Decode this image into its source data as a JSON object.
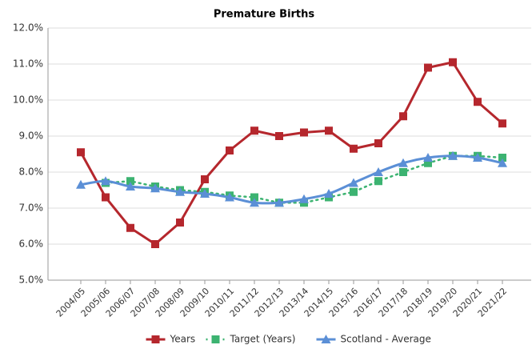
{
  "chart_data": {
    "type": "line",
    "title": "Premature Births",
    "categories": [
      "2004/05",
      "2005/06",
      "2006/07",
      "2007/08",
      "2008/09",
      "2009/10",
      "2010/11",
      "2011/12",
      "2012/13",
      "2013/14",
      "2014/15",
      "2015/16",
      "2016/17",
      "2017/18",
      "2018/19",
      "2019/20",
      "2020/21",
      "2021/22"
    ],
    "series": [
      {
        "name": "Years",
        "color": "#b5272d",
        "values": [
          8.55,
          7.3,
          6.45,
          6.0,
          6.6,
          7.8,
          8.6,
          9.15,
          9.0,
          9.1,
          9.15,
          8.65,
          8.8,
          9.55,
          10.9,
          11.05,
          9.95,
          9.35
        ]
      },
      {
        "name": "Target (Years)",
        "color": "#3cb371",
        "values": [
          null,
          7.7,
          7.75,
          7.6,
          7.5,
          7.45,
          7.35,
          7.3,
          7.15,
          7.15,
          7.3,
          7.45,
          7.75,
          8.0,
          8.25,
          8.45,
          8.45,
          8.4
        ]
      },
      {
        "name": "Scotland - Average",
        "color": "#5b8fd6",
        "values": [
          7.65,
          7.75,
          7.6,
          7.55,
          7.45,
          7.4,
          7.3,
          7.15,
          7.15,
          7.25,
          7.4,
          7.7,
          8.0,
          8.25,
          8.4,
          8.45,
          8.4,
          8.25
        ]
      }
    ],
    "ylim": [
      5,
      12
    ],
    "yticks": [
      {
        "value": 5,
        "label": "5.0%"
      },
      {
        "value": 6,
        "label": "6.0%"
      },
      {
        "value": 7,
        "label": "7.0%"
      },
      {
        "value": 8,
        "label": "8.0%"
      },
      {
        "value": 9,
        "label": "9.0%"
      },
      {
        "value": 10,
        "label": "10.0%"
      },
      {
        "value": 11,
        "label": "11.0%"
      },
      {
        "value": 12,
        "label": "12.0%"
      }
    ],
    "grid": true,
    "legend": "bottom"
  }
}
